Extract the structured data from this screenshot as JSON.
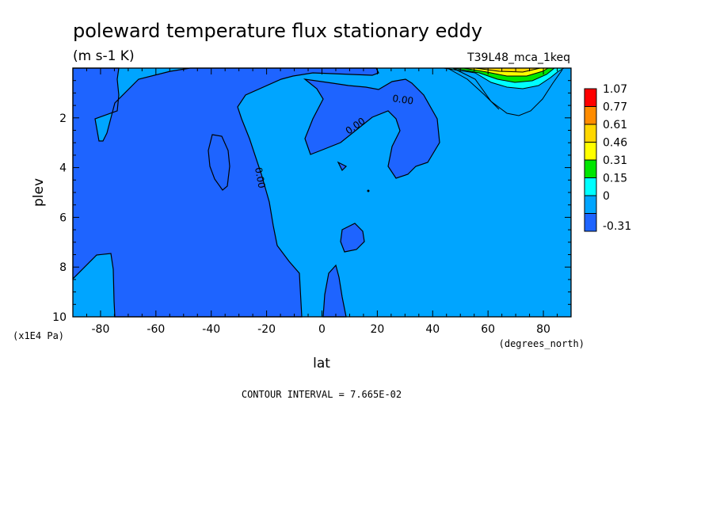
{
  "chart_data": {
    "type": "heatmap",
    "title": "poleward temperature flux stationary eddy",
    "units": "(m s-1 K)",
    "run_label": "T39L48_mca_1keq",
    "xlabel": "lat",
    "x_units": "(degrees_north)",
    "ylabel": "plev",
    "y_units": "(x1E4 Pa)",
    "xlim": [
      -90,
      90
    ],
    "ylim": [
      10,
      0
    ],
    "x_ticks": [
      -80,
      -60,
      -40,
      -20,
      0,
      20,
      40,
      60,
      80
    ],
    "y_ticks": [
      2,
      4,
      6,
      8,
      10
    ],
    "contour_interval_text": "CONTOUR INTERVAL = 7.665E-02",
    "contour_labels": [
      "0.00",
      "0.00",
      "0.00"
    ],
    "colorbar": {
      "levels": [
        "1.07",
        "0.77",
        "0.61",
        "0.46",
        "0.31",
        "0.15",
        "0",
        "-0.31"
      ],
      "colors": [
        "#ff0000",
        "#ff8c00",
        "#ffd700",
        "#ffff00",
        "#00e600",
        "#00ffff",
        "#00a5ff",
        "#1e64ff"
      ]
    },
    "field_colors": {
      "negative": "#1e64ff",
      "near_zero": "#00a5ff"
    }
  }
}
